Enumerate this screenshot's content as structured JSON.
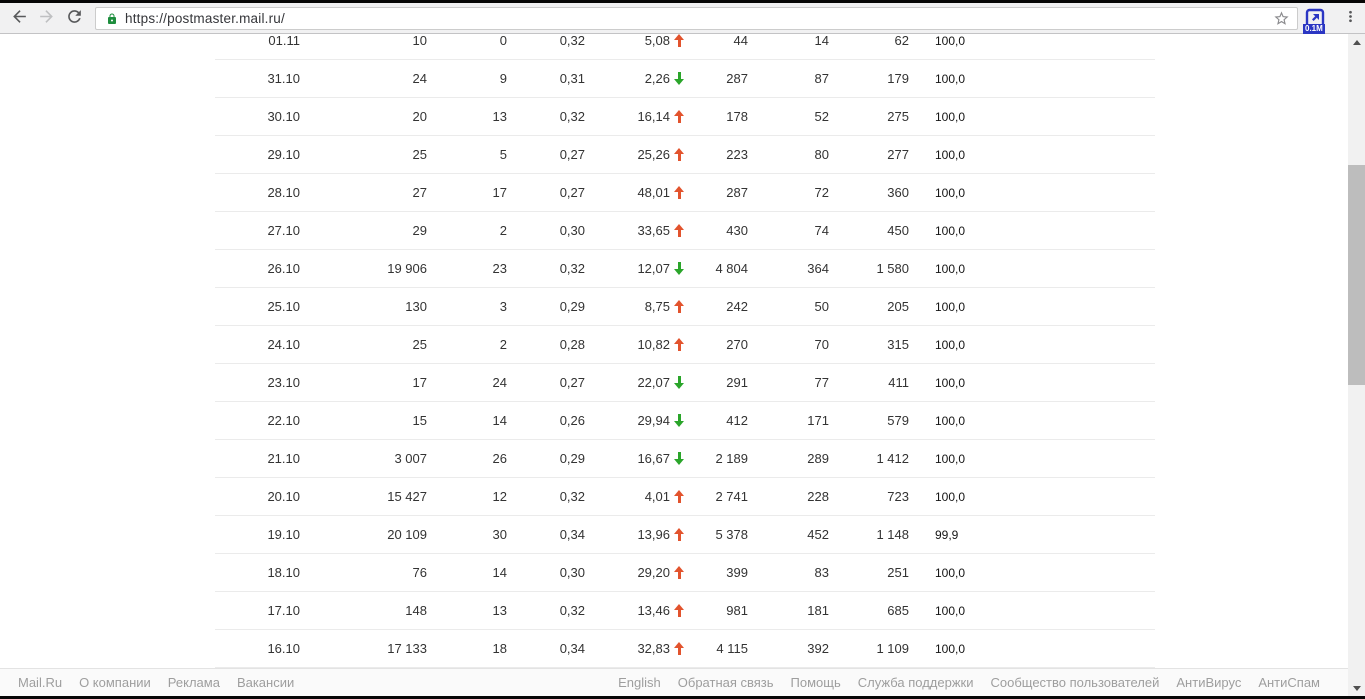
{
  "browser": {
    "url": "https://postmaster.mail.ru/",
    "extension_badge": "0.1M"
  },
  "colors": {
    "bar_green": "#2dbe64",
    "arrow_up": "#e2532d",
    "arrow_down": "#2aa52a",
    "lock_green": "#1e8e3e"
  },
  "table": {
    "rows": [
      {
        "date": "01.11",
        "col1": "10",
        "col2": "0",
        "col3": "0,32",
        "change": "5,08",
        "trend": "up",
        "col4": "44",
        "col5": "14",
        "col6": "62",
        "delivered": "100,0",
        "delivered_pct": 100
      },
      {
        "date": "31.10",
        "col1": "24",
        "col2": "9",
        "col3": "0,31",
        "change": "2,26",
        "trend": "down",
        "col4": "287",
        "col5": "87",
        "col6": "179",
        "delivered": "100,0",
        "delivered_pct": 100
      },
      {
        "date": "30.10",
        "col1": "20",
        "col2": "13",
        "col3": "0,32",
        "change": "16,14",
        "trend": "up",
        "col4": "178",
        "col5": "52",
        "col6": "275",
        "delivered": "100,0",
        "delivered_pct": 100
      },
      {
        "date": "29.10",
        "col1": "25",
        "col2": "5",
        "col3": "0,27",
        "change": "25,26",
        "trend": "up",
        "col4": "223",
        "col5": "80",
        "col6": "277",
        "delivered": "100,0",
        "delivered_pct": 100
      },
      {
        "date": "28.10",
        "col1": "27",
        "col2": "17",
        "col3": "0,27",
        "change": "48,01",
        "trend": "up",
        "col4": "287",
        "col5": "72",
        "col6": "360",
        "delivered": "100,0",
        "delivered_pct": 100
      },
      {
        "date": "27.10",
        "col1": "29",
        "col2": "2",
        "col3": "0,30",
        "change": "33,65",
        "trend": "up",
        "col4": "430",
        "col5": "74",
        "col6": "450",
        "delivered": "100,0",
        "delivered_pct": 100
      },
      {
        "date": "26.10",
        "col1": "19 906",
        "col2": "23",
        "col3": "0,32",
        "change": "12,07",
        "trend": "down",
        "col4": "4 804",
        "col5": "364",
        "col6": "1 580",
        "delivered": "100,0",
        "delivered_pct": 100
      },
      {
        "date": "25.10",
        "col1": "130",
        "col2": "3",
        "col3": "0,29",
        "change": "8,75",
        "trend": "up",
        "col4": "242",
        "col5": "50",
        "col6": "205",
        "delivered": "100,0",
        "delivered_pct": 100
      },
      {
        "date": "24.10",
        "col1": "25",
        "col2": "2",
        "col3": "0,28",
        "change": "10,82",
        "trend": "up",
        "col4": "270",
        "col5": "70",
        "col6": "315",
        "delivered": "100,0",
        "delivered_pct": 100
      },
      {
        "date": "23.10",
        "col1": "17",
        "col2": "24",
        "col3": "0,27",
        "change": "22,07",
        "trend": "down",
        "col4": "291",
        "col5": "77",
        "col6": "411",
        "delivered": "100,0",
        "delivered_pct": 100
      },
      {
        "date": "22.10",
        "col1": "15",
        "col2": "14",
        "col3": "0,26",
        "change": "29,94",
        "trend": "down",
        "col4": "412",
        "col5": "171",
        "col6": "579",
        "delivered": "100,0",
        "delivered_pct": 100
      },
      {
        "date": "21.10",
        "col1": "3 007",
        "col2": "26",
        "col3": "0,29",
        "change": "16,67",
        "trend": "down",
        "col4": "2 189",
        "col5": "289",
        "col6": "1 412",
        "delivered": "100,0",
        "delivered_pct": 100
      },
      {
        "date": "20.10",
        "col1": "15 427",
        "col2": "12",
        "col3": "0,32",
        "change": "4,01",
        "trend": "up",
        "col4": "2 741",
        "col5": "228",
        "col6": "723",
        "delivered": "100,0",
        "delivered_pct": 100
      },
      {
        "date": "19.10",
        "col1": "20 109",
        "col2": "30",
        "col3": "0,34",
        "change": "13,96",
        "trend": "up",
        "col4": "5 378",
        "col5": "452",
        "col6": "1 148",
        "delivered": "99,9",
        "delivered_pct": 99.9
      },
      {
        "date": "18.10",
        "col1": "76",
        "col2": "14",
        "col3": "0,30",
        "change": "29,20",
        "trend": "up",
        "col4": "399",
        "col5": "83",
        "col6": "251",
        "delivered": "100,0",
        "delivered_pct": 100
      },
      {
        "date": "17.10",
        "col1": "148",
        "col2": "13",
        "col3": "0,32",
        "change": "13,46",
        "trend": "up",
        "col4": "981",
        "col5": "181",
        "col6": "685",
        "delivered": "100,0",
        "delivered_pct": 100
      },
      {
        "date": "16.10",
        "col1": "17 133",
        "col2": "18",
        "col3": "0,34",
        "change": "32,83",
        "trend": "up",
        "col4": "4 115",
        "col5": "392",
        "col6": "1 109",
        "delivered": "100,0",
        "delivered_pct": 100
      }
    ]
  },
  "footer": {
    "left_links": [
      "Mail.Ru",
      "О компании",
      "Реклама",
      "Вакансии"
    ],
    "right_links": [
      "English",
      "Обратная связь",
      "Помощь",
      "Служба поддержки",
      "Сообщество пользователей",
      "АнтиВирус",
      "АнтиСпам"
    ]
  }
}
